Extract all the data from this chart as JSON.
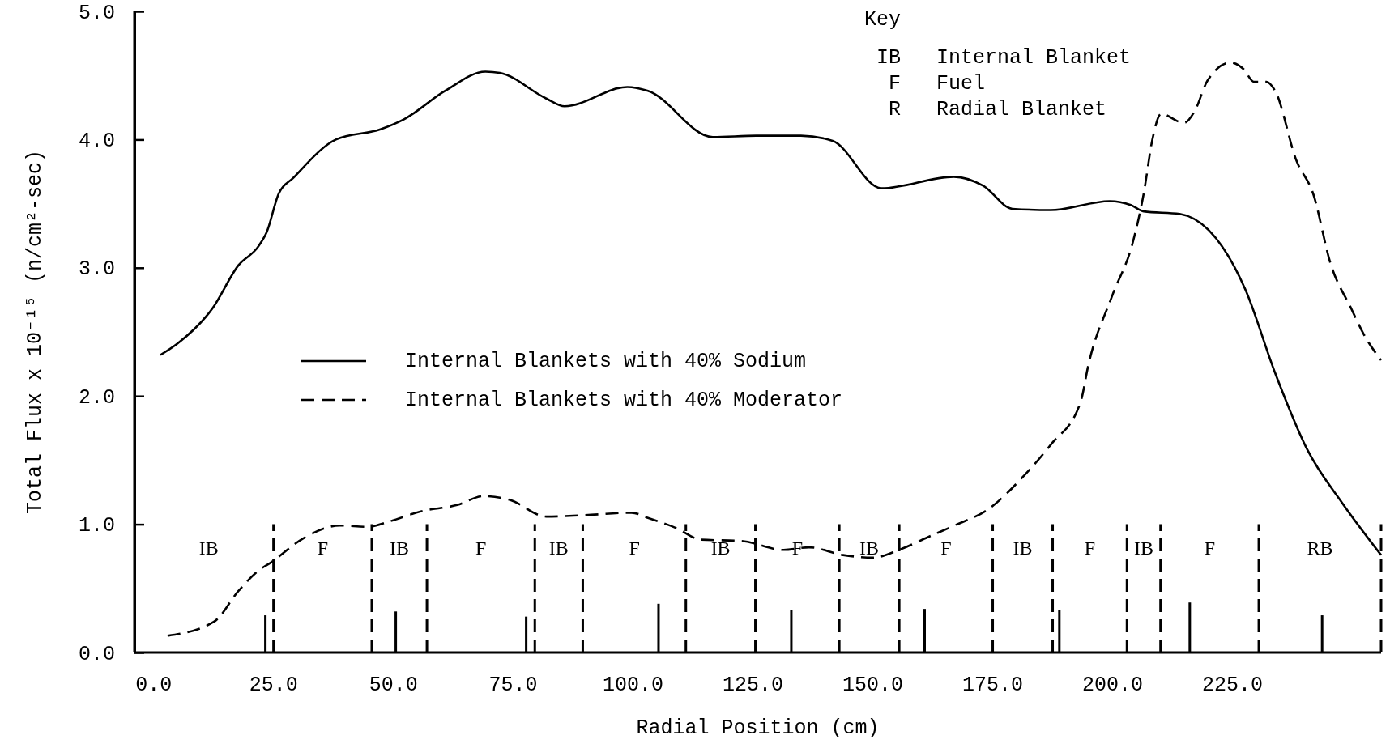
{
  "chart_data": {
    "type": "line",
    "xlabel": "Radial Position (cm)",
    "ylabel": "Total Flux x 10⁻¹⁵ (n/cm²-sec)",
    "xlim": [
      -4,
      256
    ],
    "ylim": [
      0,
      5
    ],
    "xticks": [
      {
        "value": 0,
        "label": "0.0"
      },
      {
        "value": 25,
        "label": "25.0"
      },
      {
        "value": 50,
        "label": "50.0"
      },
      {
        "value": 75,
        "label": "75.0"
      },
      {
        "value": 100,
        "label": "100.0"
      },
      {
        "value": 125,
        "label": "125.0"
      },
      {
        "value": 150,
        "label": "150.0"
      },
      {
        "value": 175,
        "label": "175.0"
      },
      {
        "value": 200,
        "label": "200.0"
      },
      {
        "value": 225,
        "label": "225.0"
      }
    ],
    "yticks": [
      {
        "value": 0,
        "label": "0.0"
      },
      {
        "value": 1,
        "label": "1.0"
      },
      {
        "value": 2,
        "label": "2.0"
      },
      {
        "value": 3,
        "label": "3.0"
      },
      {
        "value": 4,
        "label": "4.0"
      },
      {
        "value": 5,
        "label": "5.0"
      }
    ],
    "legend": "left",
    "series": [
      {
        "name": "Internal Blankets with 40% Sodium",
        "color": "#000000",
        "line_style": "solid",
        "x": [
          1.4,
          5,
          12.2,
          17.7,
          21.9,
          23.6,
          26.1,
          29.1,
          38,
          47.3,
          52.3,
          60.8,
          69.2,
          72.2,
          81.9,
          85.7,
          98.8,
          103.1,
          116.6,
          125.7,
          135,
          141.6,
          151.8,
          166.9,
          173,
          179.1,
          187.1,
          199.4,
          203.8,
          206.5,
          214,
          227.7,
          233.9,
          240.5,
          248,
          256
        ],
        "values": [
          2.32,
          2.41,
          2.68,
          3.02,
          3.17,
          3.28,
          3.58,
          3.7,
          4,
          4.08,
          4.16,
          4.38,
          4.53,
          4.52,
          4.32,
          4.26,
          4.41,
          4.38,
          4.02,
          4.03,
          4.03,
          3.99,
          3.62,
          3.71,
          3.64,
          3.46,
          3.45,
          3.52,
          3.49,
          3.44,
          3.42,
          2.83,
          2.18,
          1.59,
          1.16,
          0.76
        ]
      },
      {
        "name": "Internal Blankets with 40% Moderator",
        "color": "#000000",
        "line_style": "dashed",
        "x": [
          2.9,
          12.6,
          17.7,
          21.9,
          24.4,
          31.2,
          38.8,
          44.7,
          49,
          55.7,
          63.3,
          68.8,
          74.3,
          81.9,
          89.5,
          99.7,
          103.1,
          109,
          114.1,
          122.5,
          131.4,
          136.7,
          143.8,
          150,
          156.1,
          161.5,
          167.6,
          173.8,
          181.8,
          187.1,
          193.3,
          195,
          199.9,
          204.3,
          206.5,
          208.3,
          210.1,
          214.9,
          217.1,
          219.8,
          224.6,
          227.3,
          229.5,
          232.1,
          233.9,
          238.3,
          241.9,
          245.4,
          249.8,
          252.4,
          256
        ],
        "values": [
          0.13,
          0.24,
          0.48,
          0.64,
          0.7,
          0.89,
          0.99,
          0.98,
          1.02,
          1.1,
          1.15,
          1.22,
          1.19,
          1.06,
          1.07,
          1.09,
          1.05,
          0.97,
          0.88,
          0.87,
          0.8,
          0.82,
          0.76,
          0.74,
          0.81,
          0.9,
          1,
          1.11,
          1.39,
          1.62,
          1.95,
          2.25,
          2.78,
          3.21,
          3.58,
          4,
          4.2,
          4.13,
          4.22,
          4.46,
          4.6,
          4.55,
          4.45,
          4.45,
          4.38,
          3.84,
          3.57,
          3.04,
          2.68,
          2.48,
          2.28
        ]
      },
      {
        "type": "bar",
        "color": "#000000",
        "x": [
          23.3,
          50.5,
          77.7,
          105.3,
          133,
          160.8,
          188.9,
          216.1,
          243.7
        ],
        "values": [
          0.29,
          0.32,
          0.28,
          0.38,
          0.33,
          0.34,
          0.33,
          0.39,
          0.29
        ]
      }
    ],
    "ref_lines": [
      {
        "axis": "x",
        "value": 25,
        "line_style": "dashed",
        "label": "IB"
      },
      {
        "axis": "x",
        "value": 45.5,
        "line_style": "dashed",
        "label": "F"
      },
      {
        "axis": "x",
        "value": 57,
        "line_style": "dashed",
        "label": "IB"
      },
      {
        "axis": "x",
        "value": 79.5,
        "line_style": "dashed",
        "label": "F"
      },
      {
        "axis": "x",
        "value": 89.5,
        "line_style": "dashed",
        "label": "IB"
      },
      {
        "axis": "x",
        "value": 111,
        "line_style": "dashed",
        "label": "F"
      },
      {
        "axis": "x",
        "value": 125.5,
        "line_style": "dashed",
        "label": "IB"
      },
      {
        "axis": "x",
        "value": 143,
        "line_style": "dashed",
        "label": "F"
      },
      {
        "axis": "x",
        "value": 155.5,
        "line_style": "dashed",
        "label": "IB"
      },
      {
        "axis": "x",
        "value": 175,
        "line_style": "dashed",
        "label": "F"
      },
      {
        "axis": "x",
        "value": 187.5,
        "line_style": "dashed",
        "label": "IB"
      },
      {
        "axis": "x",
        "value": 203,
        "line_style": "dashed",
        "label": "F"
      },
      {
        "axis": "x",
        "value": 210,
        "line_style": "dashed",
        "label": "IB"
      },
      {
        "axis": "x",
        "value": 230.5,
        "line_style": "dashed",
        "label": "F"
      },
      {
        "axis": "x",
        "value": 256,
        "line_style": "dashed",
        "label": "RB"
      }
    ],
    "annotations": [
      "Key",
      "IB",
      "Internal Blanket",
      "F",
      "Fuel",
      "R",
      "Radial Blanket"
    ]
  }
}
